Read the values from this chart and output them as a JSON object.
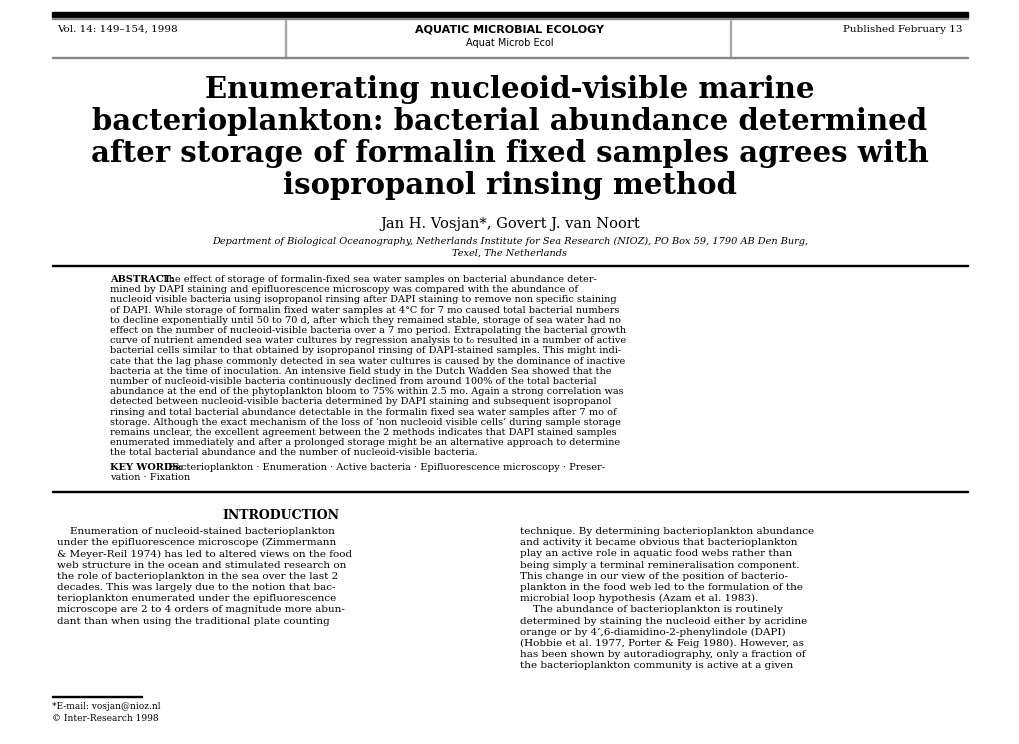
{
  "page_bg": "#ffffff",
  "header_bar_color": "#000000",
  "header_left": "Vol. 14: 149–154, 1998",
  "header_center_line1": "AQUATIC MICROBIAL ECOLOGY",
  "header_center_line2": "Aquat Microb Ecol",
  "header_right": "Published February 13",
  "title_line1": "Enumerating nucleoid-visible marine",
  "title_line2": "bacterioplankton: bacterial abundance determined",
  "title_line3": "after storage of formalin fixed samples agrees with",
  "title_line4": "isopropanol rinsing method",
  "authors": "Jan H. Vosjan*, Govert J. van Noort",
  "affiliation_line1": "Department of Biological Oceanography, Netherlands Institute for Sea Research (NIOZ), PO Box 59, 1790 AB Den Burg,",
  "affiliation_line2": "Texel, The Netherlands",
  "abstract_label": "ABSTRACT:",
  "abstract_text": "The effect of storage of formalin-fixed sea water samples on bacterial abundance deter-\nmined by DAPI staining and epifluorescence microscopy was compared with the abundance of\nnucleoid visible bacteria using isopropanol rinsing after DAPI staining to remove non specific staining\nof DAPI. While storage of formalin fixed water samples at 4°C for 7 mo caused total bacterial numbers\nto decline exponentially until 50 to 70 d, after which they remained stable, storage of sea water had no\neffect on the number of nucleoid-visible bacteria over a 7 mo period. Extrapolating the bacterial growth\ncurve of nutrient amended sea water cultures by regression analysis to t₀ resulted in a number of active\nbacterial cells similar to that obtained by isopropanol rinsing of DAPI-stained samples. This might indi-\ncate that the lag phase commonly detected in sea water cultures is caused by the dominance of inactive\nbacteria at the time of inoculation. An intensive field study in the Dutch Wadden Sea showed that the\nnumber of nucleoid-visible bacteria continuously declined from around 100% of the total bacterial\nabundance at the end of the phytoplankton bloom to 75% within 2.5 mo. Again a strong correlation was\ndetected between nucleoid-visible bacteria determined by DAPI staining and subsequent isopropanol\nrinsing and total bacterial abundance detectable in the formalin fixed sea water samples after 7 mo of\nstorage. Although the exact mechanism of the loss of ‘non nucleoid visible cells’ during sample storage\nremains unclear, the excellent agreement between the 2 methods indicates that DAPI stained samples\nenumerated immediately and after a prolonged storage might be an alternative approach to determine\nthe total bacterial abundance and the number of nucleoid-visible bacteria.",
  "keywords_label": "KEY WORDS:",
  "keywords_text": "Bacterioplankton · Enumeration · Active bacteria · Epifluorescence microscopy · Preser-\nvation · Fixation",
  "intro_heading": "INTRODUCTION",
  "intro_col1": "    Enumeration of nucleoid-stained bacterioplankton\nunder the epifluorescence microscope (Zimmermann\n& Meyer-Reil 1974) has led to altered views on the food\nweb structure in the ocean and stimulated research on\nthe role of bacterioplankton in the sea over the last 2\ndecades. This was largely due to the notion that bac-\nterioplankton enumerated under the epifluorescence\nmicroscope are 2 to 4 orders of magnitude more abun-\ndant than when using the traditional plate counting",
  "intro_col2": "technique. By determining bacterioplankton abundance\nand activity it became obvious that bacterioplankton\nplay an active role in aquatic food webs rather than\nbeing simply a terminal remineralisation component.\nThis change in our view of the position of bacterio-\nplankton in the food web led to the formulation of the\nmicrobial loop hypothesis (Azam et al. 1983).\n    The abundance of bacterioplankton is routinely\ndetermined by staining the nucleoid either by acridine\norange or by 4’,6-diamidino-2-phenylindole (DAPI)\n(Hobbie et al. 1977, Porter & Feig 1980). However, as\nhas been shown by autoradiography, only a fraction of\nthe bacterioplankton community is active at a given",
  "footnote": "*E-mail: vosjan@nioz.nl",
  "copyright": "© Inter-Research 1998"
}
